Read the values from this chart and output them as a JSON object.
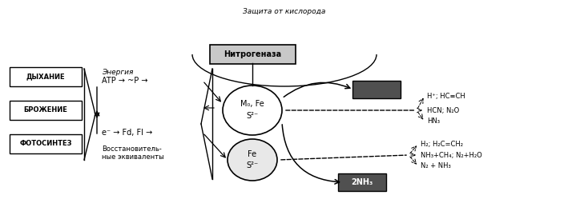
{
  "title_arc": "Защита от кислорода",
  "nitrogenase_label": "Нитрогеназа",
  "box_labels": [
    "ДЫХАНИЕ",
    "БРОЖЕНИЕ",
    "ФОТОСИНТЕЗ"
  ],
  "energy_label": "Энергия",
  "atp_label": "ATP → ~P →",
  "electron_label": "e⁻ → Fd, FI →",
  "reductive1": "Восстановитель-",
  "reductive2": "ные эквиваленты",
  "mo_fe_line1": "M₀, Fe",
  "mo_fe_line2": "S²⁻",
  "fe_line1": "Fe",
  "fe_line2": "S²⁻",
  "product_top_line1": "H⁺; HC≡CH",
  "product_top_line2": "HCN; N₂O",
  "product_top_line3": "HN₃",
  "product_bot_line1": "H₂; H₂C=CH₂",
  "product_bot_line2": "NH₃+CH₄; N₂+H₂O",
  "product_bot_line3": "N₂ + NH₃",
  "box_2nh3": "2NH₃",
  "bg_color": "#ffffff",
  "nitrogenase_fill": "#c8c8c8",
  "dark_fill": "#505050"
}
